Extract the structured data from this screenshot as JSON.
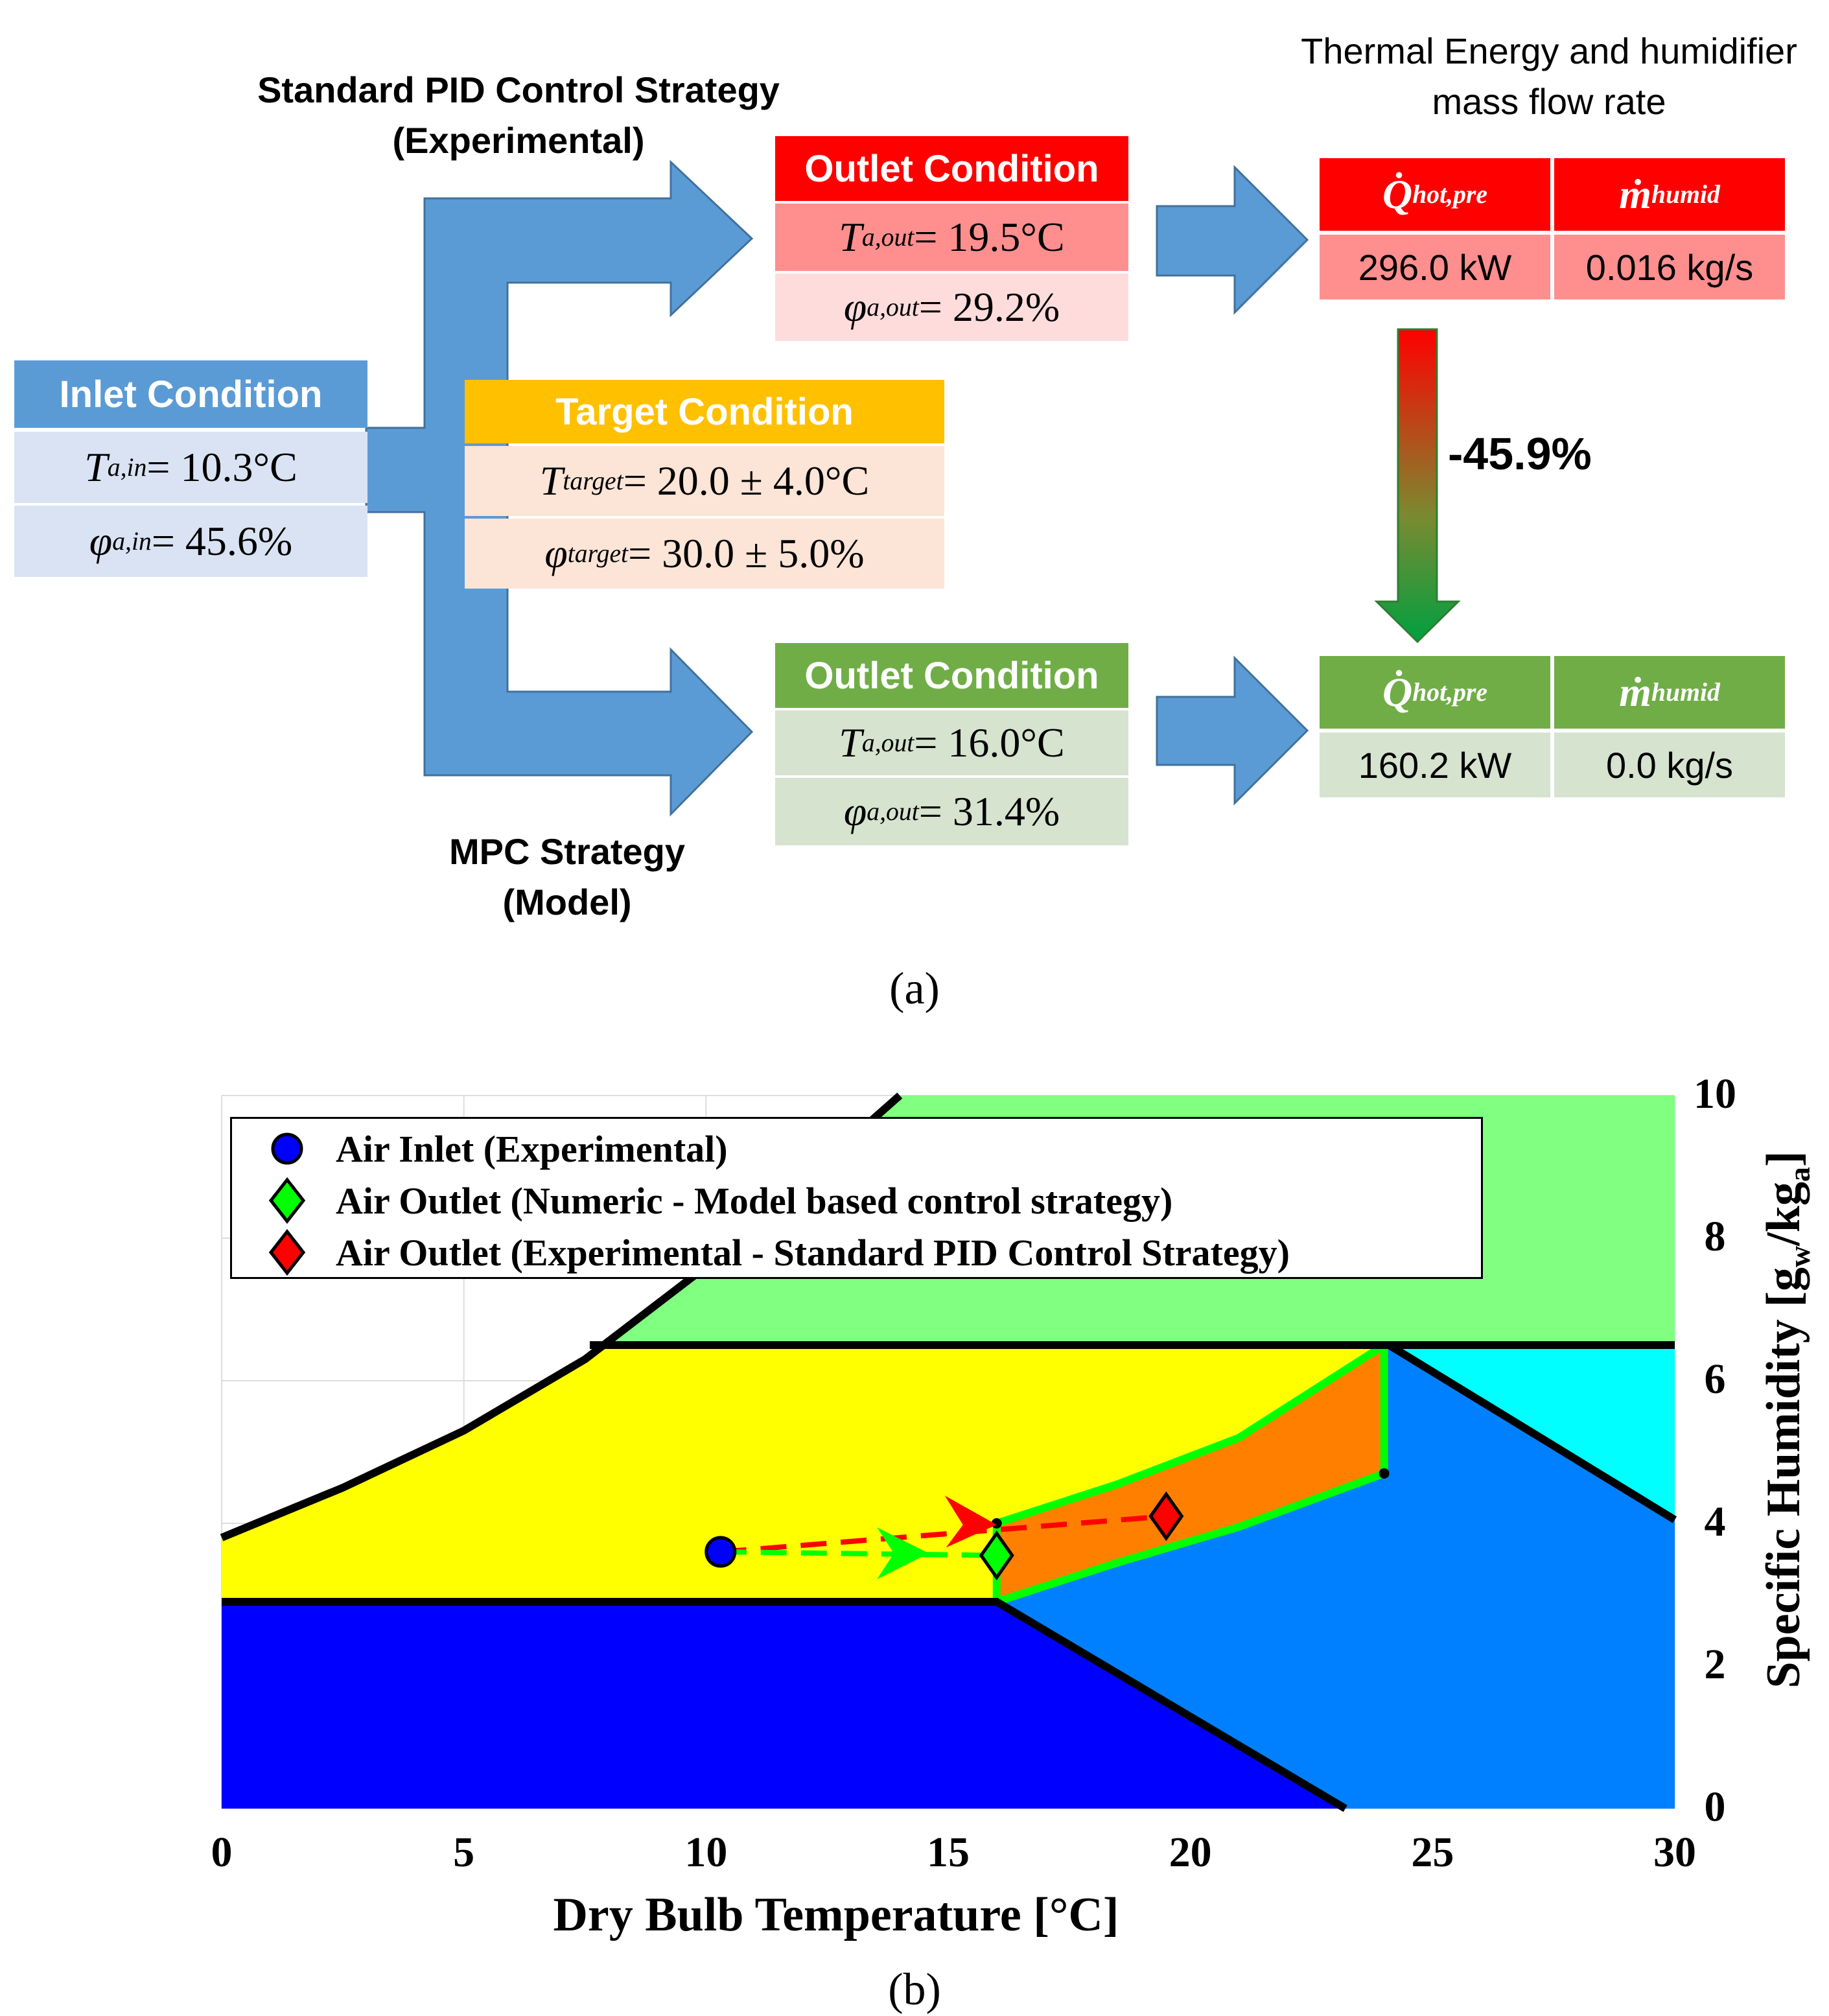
{
  "panel_a": {
    "label": "(a)",
    "strategy_top": "Standard PID Control Strategy",
    "strategy_top_sub": "(Experimental)",
    "strategy_bottom": "MPC Strategy",
    "strategy_bottom_sub": "(Model)",
    "energy_title_line1": "Thermal Energy and humidifier",
    "energy_title_line2": "mass flow rate",
    "inlet": {
      "header": "Inlet Condition",
      "t_sym": "T",
      "t_sub": "a,in",
      "t_val": " = 10.3°C",
      "phi_sym": "φ",
      "phi_sub": "a,in",
      "phi_val": " = 45.6%"
    },
    "target": {
      "header": "Target Condition",
      "t_sym": "T",
      "t_sub": "target",
      "t_val": " = 20.0 ± 4.0°C",
      "phi_sym": "φ",
      "phi_sub": "target",
      "phi_val": " = 30.0 ± 5.0%"
    },
    "outlet_pid": {
      "header": "Outlet Condition",
      "t_sym": "T",
      "t_sub": "a,out",
      "t_val": " = 19.5°C",
      "phi_sym": "φ",
      "phi_sub": "a,out",
      "phi_val": " = 29.2%"
    },
    "outlet_mpc": {
      "header": "Outlet Condition",
      "t_sym": "T",
      "t_sub": "a,out",
      "t_val": " = 16.0°C",
      "phi_sym": "φ",
      "phi_sub": "a,out",
      "phi_val": " = 31.4%"
    },
    "energy_pid": {
      "q_sym": "Q̇",
      "q_sub": "hot,pre",
      "m_sym": "ṁ",
      "m_sub": "humid",
      "q_val": "296.0 kW",
      "m_val": "0.016 kg/s"
    },
    "energy_mpc": {
      "q_sym": "Q̇",
      "q_sub": "hot,pre",
      "m_sym": "ṁ",
      "m_sub": "humid",
      "q_val": "160.2 kW",
      "m_val": "0.0 kg/s"
    },
    "reduction": "-45.9%",
    "colors": {
      "blue_header": "#5b9bd5",
      "blue_cell": "#dae3f3",
      "orange_header": "#ffc000",
      "orange_cell": "#fce4d6",
      "red_header": "#ff0000",
      "red_cell1": "#ff8f8f",
      "red_cell2": "#ffdcdc",
      "green_header": "#70ad47",
      "green_cell": "#d5e3cf",
      "arrow": "#5b9bd5"
    }
  },
  "panel_b": {
    "label": "(b)",
    "legend": [
      {
        "icon": "blue-circle",
        "label": "Air Inlet (Experimental)"
      },
      {
        "icon": "green-diamond",
        "label": "Air Outlet (Numeric - Model based control strategy)"
      },
      {
        "icon": "red-diamond",
        "label": "Air Outlet (Experimental - Standard PID Control Strategy)"
      }
    ],
    "colors": {
      "green_zone": "#80ff80",
      "yellow_zone": "#ffff00",
      "navy_zone": "#0000ff",
      "blue_zone": "#0080ff",
      "cyan_zone": "#00ffff",
      "orange_zone": "#ff8000",
      "boundary": "#00ff00"
    }
  },
  "chart_data": {
    "type": "scatter",
    "xlabel": "Dry Bulb Temperature [°C]",
    "ylabel": "Specific Humidity [g_w/kg_a]",
    "ylabel_main": "Specific Humidity [g",
    "ylabel_w": "w",
    "ylabel_mid": "/kg",
    "ylabel_a": "a",
    "ylabel_end": "]",
    "xlim": [
      0,
      30
    ],
    "ylim": [
      0,
      10
    ],
    "x_ticks": [
      0,
      5,
      10,
      15,
      20,
      25,
      30
    ],
    "y_ticks": [
      0,
      2,
      4,
      6,
      8,
      10
    ],
    "grid": true,
    "series": [
      {
        "name": "Air Inlet (Experimental)",
        "marker": "circle",
        "color": "#0000ff",
        "points": [
          [
            10.3,
            3.6
          ]
        ]
      },
      {
        "name": "Air Outlet (Numeric - Model based control strategy)",
        "marker": "diamond",
        "color": "#00ff00",
        "points": [
          [
            16.0,
            3.55
          ]
        ]
      },
      {
        "name": "Air Outlet (Experimental - Standard PID Control Strategy)",
        "marker": "diamond",
        "color": "#ff0000",
        "points": [
          [
            19.5,
            4.1
          ]
        ]
      }
    ],
    "target_zone": {
      "polygon": [
        [
          16.0,
          4.0
        ],
        [
          24.0,
          4.7
        ],
        [
          24.0,
          6.5
        ],
        [
          16.0,
          2.9
        ]
      ]
    },
    "moisture_limit": 6.5,
    "dry_limit": 2.9
  }
}
